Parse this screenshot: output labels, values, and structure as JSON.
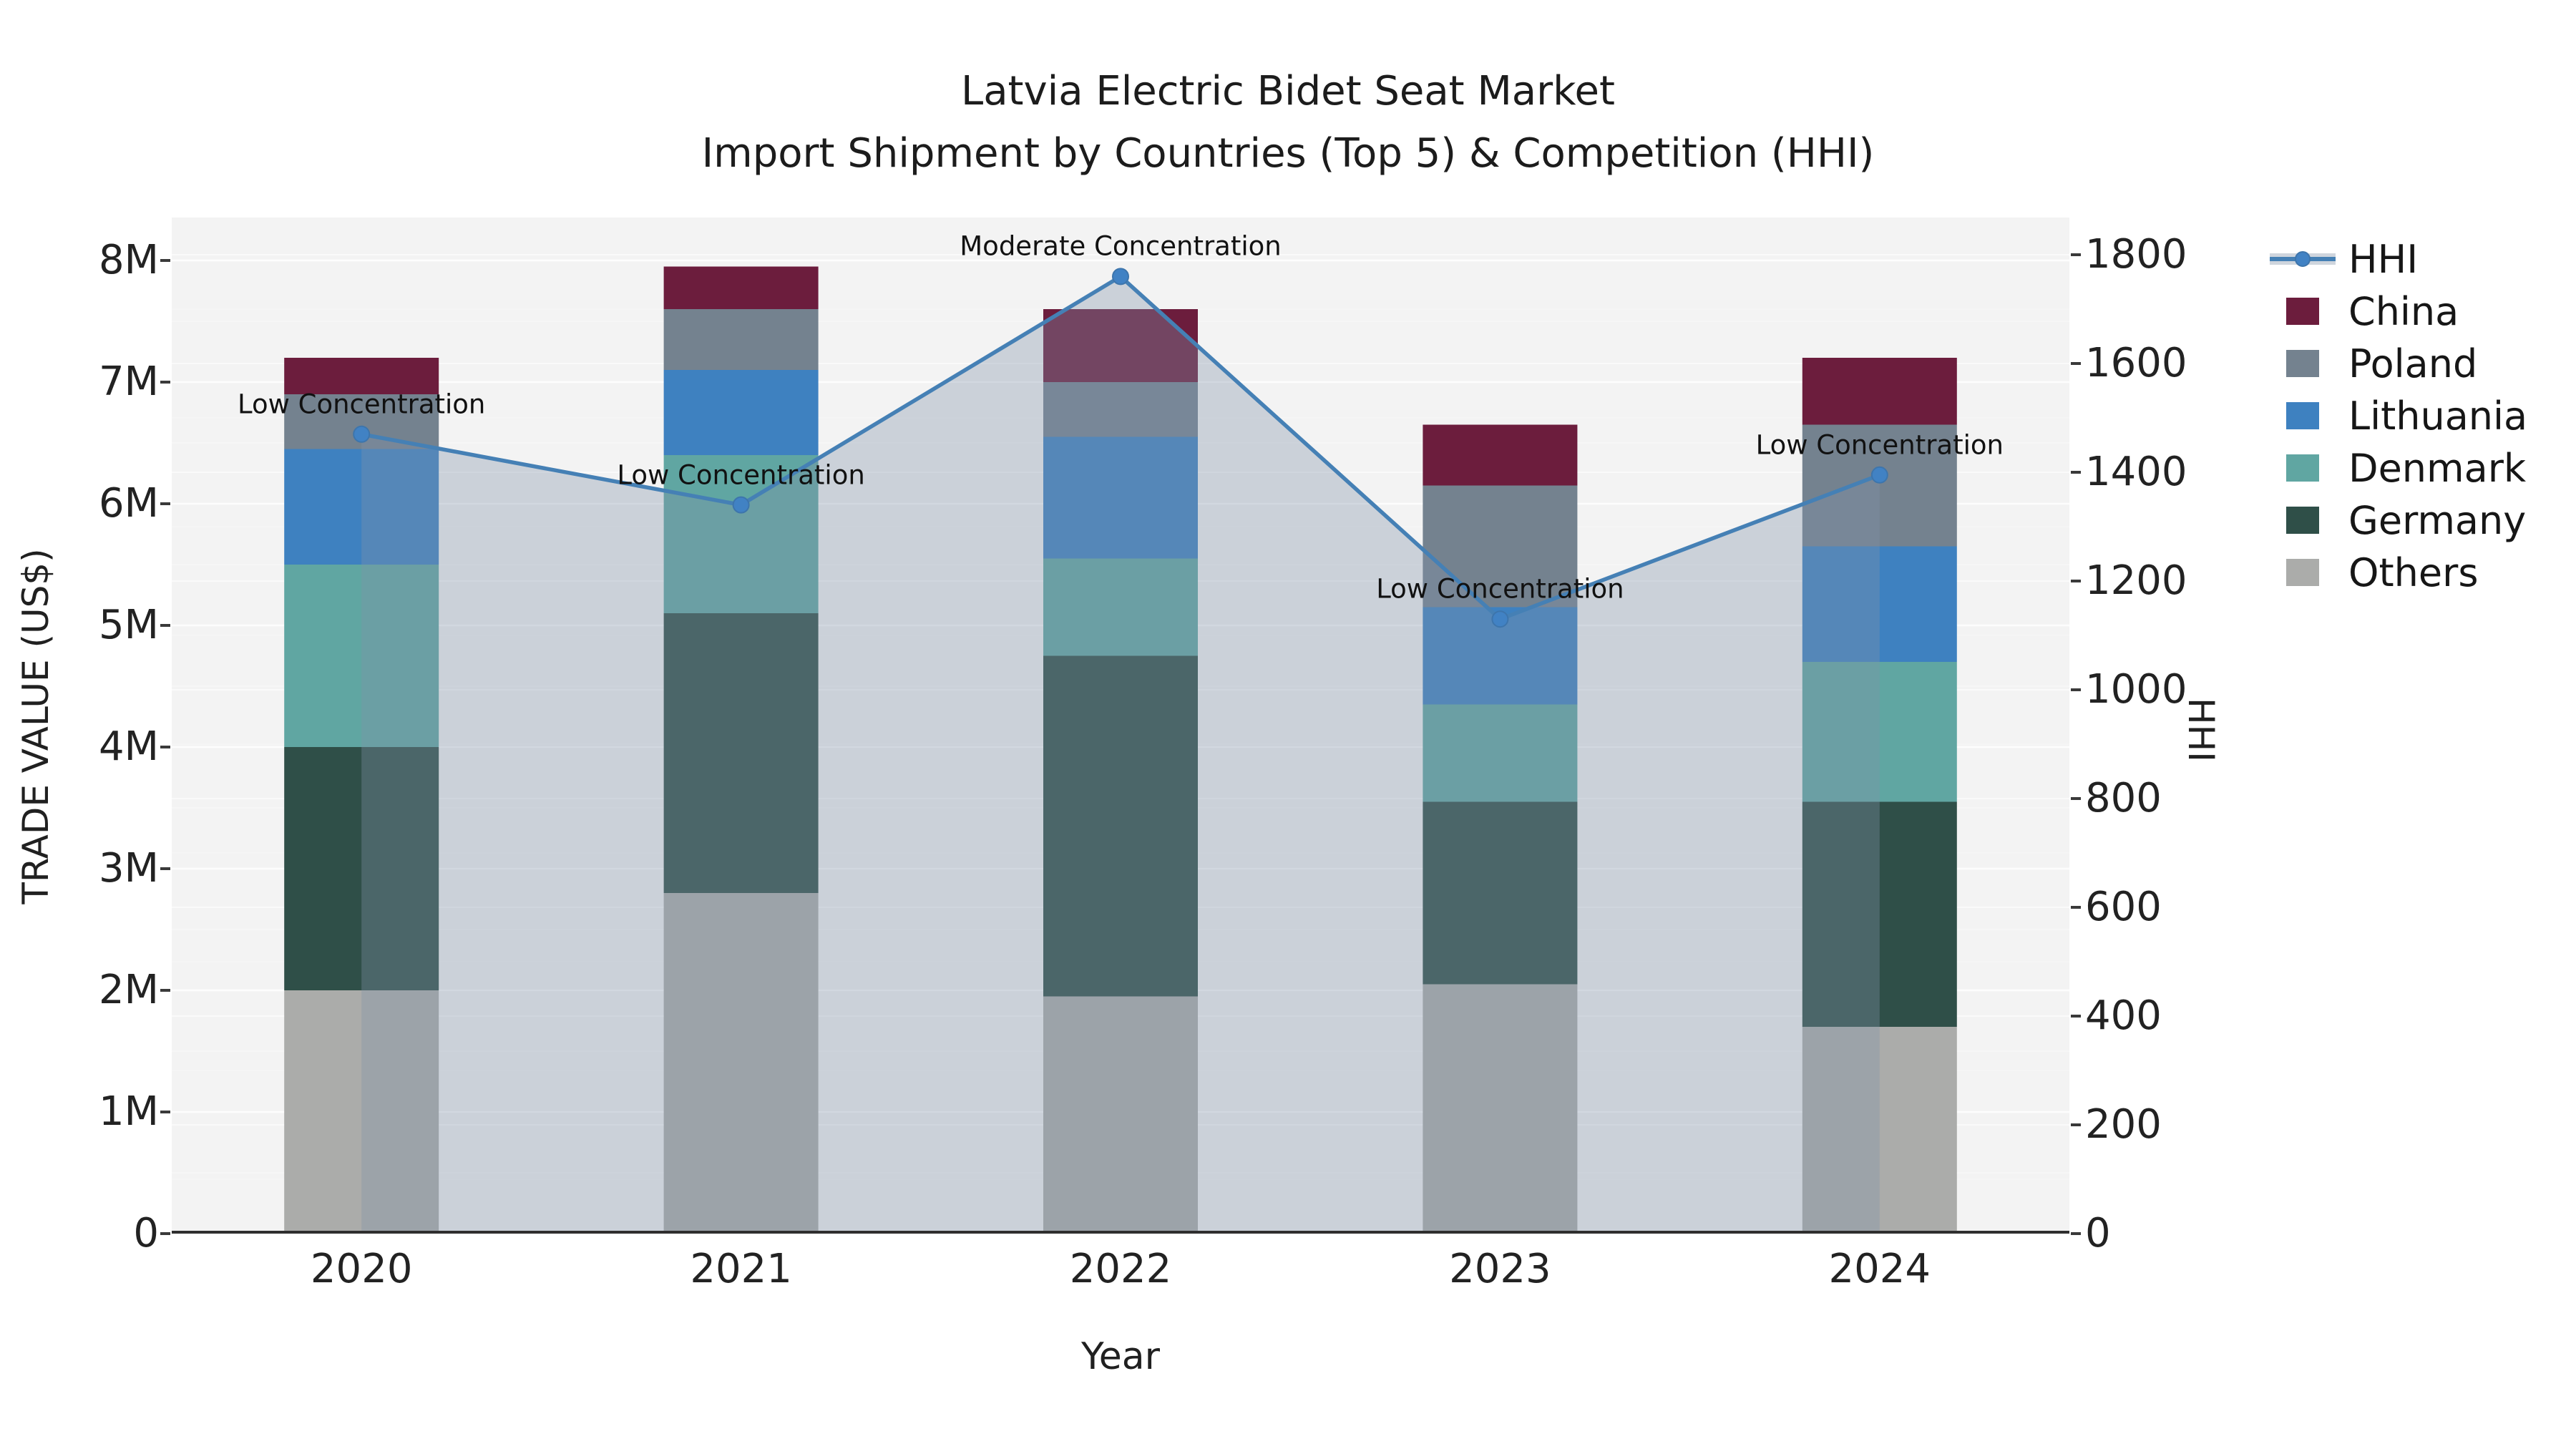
{
  "title": {
    "line1": "Latvia Electric Bidet Seat Market",
    "line2": "Import Shipment by Countries (Top 5) & Competition (HHI)"
  },
  "axes": {
    "x_label": "Year",
    "y_left_label": "TRADE VALUE (US$)",
    "y_right_label": "HHI",
    "y_left_ticks": [
      "0",
      "1M",
      "2M",
      "3M",
      "4M",
      "5M",
      "6M",
      "7M",
      "8M"
    ],
    "y_right_ticks": [
      "0",
      "200",
      "400",
      "600",
      "800",
      "1000",
      "1200",
      "1400",
      "1600",
      "1800"
    ],
    "y_left_range_musd": [
      0,
      8.35
    ],
    "y_right_range": [
      0,
      1868
    ]
  },
  "chart_data": {
    "type": "stacked-bar+line",
    "title": "Latvia Electric Bidet Seat Market — Import Shipment by Countries (Top 5) & Competition (HHI)",
    "xlabel": "Year",
    "ylabel_left": "TRADE VALUE (US$)",
    "ylabel_right": "HHI",
    "categories": [
      "2020",
      "2021",
      "2022",
      "2023",
      "2024"
    ],
    "unit": "million US$",
    "stack_order": "bottom to top",
    "series": [
      {
        "name": "Others",
        "color": "#ABACAA",
        "values": [
          2.0,
          2.8,
          1.95,
          2.05,
          1.7
        ]
      },
      {
        "name": "Germany",
        "color": "#2F4F48",
        "values": [
          2.0,
          2.3,
          2.8,
          1.5,
          1.85
        ]
      },
      {
        "name": "Denmark",
        "color": "#60A6A2",
        "values": [
          1.5,
          1.3,
          0.8,
          0.8,
          1.15
        ]
      },
      {
        "name": "Lithuania",
        "color": "#3E81C0",
        "values": [
          0.95,
          0.7,
          1.0,
          0.8,
          0.95
        ]
      },
      {
        "name": "Poland",
        "color": "#74828F",
        "values": [
          0.45,
          0.5,
          0.45,
          1.0,
          1.0
        ]
      },
      {
        "name": "China",
        "color": "#6C1D3D",
        "values": [
          0.3,
          0.35,
          0.6,
          0.5,
          0.55
        ]
      }
    ],
    "bar_totals_musd": [
      7.2,
      7.95,
      7.6,
      6.65,
      7.2
    ],
    "line": {
      "name": "HHI",
      "values": [
        1470,
        1340,
        1760,
        1130,
        1395
      ],
      "color": "#4580B5",
      "marker_color": "#4182C4",
      "area_fill_color": "rgba(130,145,170,0.35)"
    },
    "annotations": [
      {
        "year": "2020",
        "text": "Low Concentration"
      },
      {
        "year": "2021",
        "text": "Low Concentration"
      },
      {
        "year": "2022",
        "text": "Moderate Concentration"
      },
      {
        "year": "2023",
        "text": "Low Concentration"
      },
      {
        "year": "2024",
        "text": "Low Concentration"
      }
    ],
    "plot_background": "#F3F3F3",
    "gridline_color": "#FFFFFF",
    "legend_position": "right"
  },
  "legend": {
    "items": [
      {
        "label": "HHI",
        "swatch": "line-with-area"
      },
      {
        "label": "China",
        "swatch": "patch",
        "color": "#6C1D3D"
      },
      {
        "label": "Poland",
        "swatch": "patch",
        "color": "#74828F"
      },
      {
        "label": "Lithuania",
        "swatch": "patch",
        "color": "#3E81C0"
      },
      {
        "label": "Denmark",
        "swatch": "patch",
        "color": "#60A6A2"
      },
      {
        "label": "Germany",
        "swatch": "patch",
        "color": "#2F4F48"
      },
      {
        "label": "Others",
        "swatch": "patch",
        "color": "#ABACAA"
      }
    ]
  }
}
